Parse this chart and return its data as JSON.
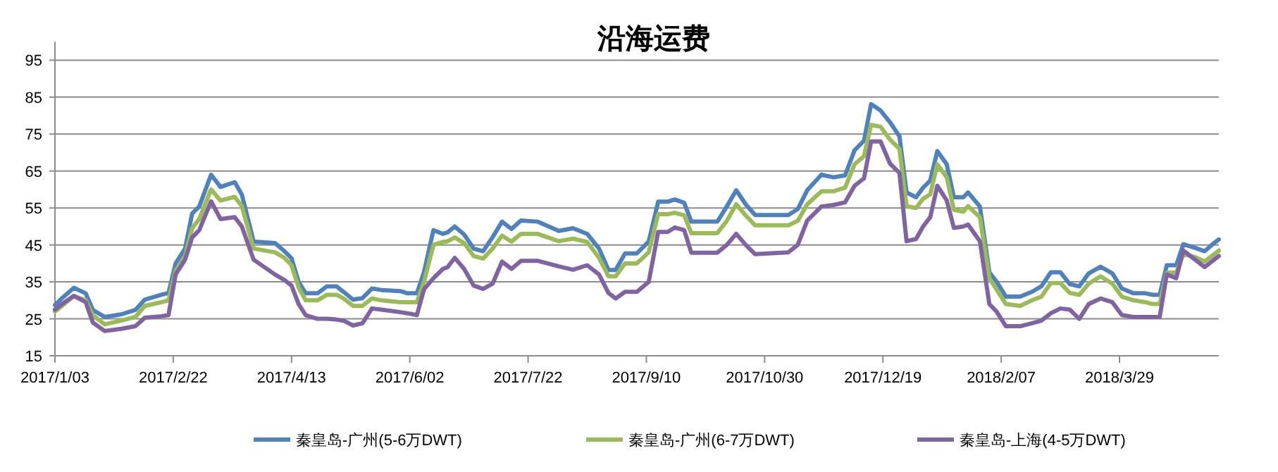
{
  "chart_data": {
    "type": "line",
    "title": "沿海运费",
    "x": [
      "2017-01-03",
      "2017-01-06",
      "2017-01-11",
      "2017-01-16",
      "2017-01-19",
      "2017-01-24",
      "2017-01-31",
      "2017-02-06",
      "2017-02-10",
      "2017-02-17",
      "2017-02-20",
      "2017-02-23",
      "2017-02-27",
      "2017-03-02",
      "2017-03-05",
      "2017-03-10",
      "2017-03-14",
      "2017-03-20",
      "2017-03-23",
      "2017-03-28",
      "2017-04-06",
      "2017-04-10",
      "2017-04-13",
      "2017-04-16",
      "2017-04-19",
      "2017-04-24",
      "2017-04-28",
      "2017-05-02",
      "2017-05-05",
      "2017-05-09",
      "2017-05-13",
      "2017-05-17",
      "2017-05-21",
      "2017-05-29",
      "2017-06-01",
      "2017-06-05",
      "2017-06-08",
      "2017-06-12",
      "2017-06-16",
      "2017-06-18",
      "2017-06-21",
      "2017-06-25",
      "2017-06-29",
      "2017-07-03",
      "2017-07-07",
      "2017-07-11",
      "2017-07-15",
      "2017-07-19",
      "2017-07-26",
      "2017-08-04",
      "2017-08-10",
      "2017-08-16",
      "2017-08-21",
      "2017-08-25",
      "2017-08-28",
      "2017-09-01",
      "2017-09-06",
      "2017-09-11",
      "2017-09-15",
      "2017-09-19",
      "2017-09-22",
      "2017-09-26",
      "2017-09-29",
      "2017-10-10",
      "2017-10-14",
      "2017-10-18",
      "2017-10-22",
      "2017-10-26",
      "2017-11-09",
      "2017-11-13",
      "2017-11-17",
      "2017-11-23",
      "2017-11-28",
      "2017-12-03",
      "2017-12-07",
      "2017-12-11",
      "2017-12-14",
      "2017-12-18",
      "2017-12-22",
      "2017-12-26",
      "2017-12-29",
      "2018-01-02",
      "2018-01-05",
      "2018-01-08",
      "2018-01-11",
      "2018-01-15",
      "2018-01-18",
      "2018-01-22",
      "2018-01-24",
      "2018-01-29",
      "2018-02-02",
      "2018-02-05",
      "2018-02-09",
      "2018-02-15",
      "2018-02-20",
      "2018-02-24",
      "2018-02-28",
      "2018-03-04",
      "2018-03-08",
      "2018-03-12",
      "2018-03-16",
      "2018-03-21",
      "2018-03-26",
      "2018-03-30",
      "2018-04-04",
      "2018-04-09",
      "2018-04-12",
      "2018-04-15",
      "2018-04-18",
      "2018-04-22",
      "2018-04-25",
      "2018-04-30",
      "2018-05-04",
      "2018-05-08",
      "2018-05-10"
    ],
    "series": [
      {
        "name": "秦皇岛-广州(5-6万DWT)",
        "color": "#4f81bd",
        "values": [
          28.7,
          30.6,
          33.4,
          31.9,
          27.4,
          25.5,
          26.2,
          27.4,
          30.2,
          31.5,
          32,
          40,
          44,
          53.5,
          55.4,
          64,
          60.7,
          62,
          58.6,
          45.9,
          45.5,
          43.3,
          41.4,
          35,
          31.9,
          31.9,
          33.8,
          33.8,
          32.3,
          30.2,
          30.6,
          33.2,
          32.8,
          32.5,
          31.9,
          31.9,
          37.6,
          49,
          48,
          48.4,
          50,
          47.8,
          44,
          43.3,
          47.1,
          51.3,
          49.3,
          51.6,
          51.3,
          48.8,
          49.5,
          48,
          44,
          38.2,
          38.2,
          42.7,
          42.7,
          45.9,
          56.7,
          56.7,
          57.3,
          56.4,
          51.3,
          51.3,
          55.4,
          59.8,
          56,
          53.1,
          53.1,
          54.7,
          59.8,
          64,
          63.3,
          63.8,
          70.6,
          73.2,
          83.1,
          81.4,
          78.2,
          74.4,
          59.2,
          57.9,
          60.5,
          62.4,
          70.4,
          66.8,
          57.9,
          57.9,
          59.2,
          55.4,
          37.6,
          35.1,
          31,
          31,
          32.3,
          33.8,
          37.6,
          37.6,
          34.4,
          33.8,
          37.3,
          39.1,
          37.3,
          33.2,
          31.9,
          31.9,
          31.5,
          31.5,
          39.5,
          39.5,
          45.2,
          44.2,
          43.3,
          45.5,
          46.5
        ]
      },
      {
        "name": "秦皇岛-广州(6-7万DWT)",
        "color": "#9bbb59",
        "values": [
          27,
          28.5,
          31.2,
          30,
          26,
          23.5,
          24.5,
          25.5,
          28.5,
          29.5,
          30,
          38,
          42,
          49.5,
          52,
          60,
          57,
          58,
          55.5,
          44,
          43,
          41.5,
          39.5,
          33.5,
          30,
          30,
          31.5,
          31.5,
          30.5,
          28.5,
          28.5,
          30.5,
          30,
          29.5,
          29.5,
          29.5,
          35,
          45,
          45.8,
          46,
          47,
          45.5,
          42,
          41.3,
          44,
          47.5,
          45.9,
          48,
          48,
          46,
          46.7,
          45.8,
          41.5,
          36.5,
          36.5,
          40,
          40,
          43,
          53.3,
          53.3,
          53.7,
          53,
          48.2,
          48.2,
          51.5,
          56,
          53,
          50.3,
          50.3,
          51.5,
          56,
          59.5,
          59.5,
          60.5,
          66.8,
          69,
          77.5,
          77,
          73.5,
          71,
          55.5,
          55,
          57.5,
          58.7,
          66.8,
          63.3,
          54.5,
          54,
          55.5,
          52.5,
          36,
          33,
          29,
          28.5,
          30,
          31,
          34.7,
          34.7,
          32,
          31.5,
          34.5,
          36.5,
          34.5,
          31,
          30,
          29.5,
          29,
          29,
          37.5,
          37.5,
          42.5,
          41.7,
          40.5,
          42.5,
          43.5
        ]
      },
      {
        "name": "秦皇岛-上海(4-5万DWT)",
        "color": "#8064a2",
        "values": [
          27.5,
          29,
          31.2,
          29.5,
          24,
          21.7,
          22.3,
          23,
          25.3,
          25.7,
          26,
          37,
          41,
          47,
          49,
          56.8,
          52,
          52.5,
          50,
          41,
          37,
          35.5,
          34,
          29,
          26,
          25,
          25,
          24.8,
          24.5,
          23.2,
          23.8,
          27.8,
          27.5,
          26.8,
          26.5,
          26,
          33,
          36,
          38.5,
          39,
          41.5,
          38.5,
          34,
          33.1,
          34.5,
          40.5,
          38.5,
          40.7,
          40.7,
          39.2,
          38.3,
          39.5,
          37,
          32,
          30.5,
          32.3,
          32.3,
          35,
          48.5,
          48.5,
          49.7,
          49,
          42.9,
          42.9,
          45,
          48,
          45,
          42.5,
          43,
          45,
          51.6,
          55.4,
          55.8,
          56.5,
          61,
          63,
          73,
          73,
          67,
          64.5,
          46,
          46.6,
          50,
          52.5,
          61,
          57,
          49.6,
          50,
          50.5,
          46,
          29,
          27,
          23,
          23,
          23.8,
          24.5,
          26.5,
          27.8,
          27.5,
          25,
          29,
          30.5,
          29.5,
          26,
          25.5,
          25.5,
          25.5,
          25.5,
          37,
          36,
          43.5,
          41,
          39,
          41,
          42
        ]
      }
    ],
    "xlim": [
      "2017-01-03",
      "2018-05-10"
    ],
    "xticks": [
      {
        "value": "2017-01-03",
        "label": "2017/1/03"
      },
      {
        "value": "2017-02-22",
        "label": "2017/2/22"
      },
      {
        "value": "2017-04-13",
        "label": "2017/4/13"
      },
      {
        "value": "2017-06-02",
        "label": "2017/6/02"
      },
      {
        "value": "2017-07-22",
        "label": "2017/7/22"
      },
      {
        "value": "2017-09-10",
        "label": "2017/9/10"
      },
      {
        "value": "2017-10-30",
        "label": "2017/10/30"
      },
      {
        "value": "2017-12-19",
        "label": "2017/12/19"
      },
      {
        "value": "2018-02-07",
        "label": "2018/2/07"
      },
      {
        "value": "2018-03-29",
        "label": "2018/3/29"
      }
    ],
    "ylim": [
      15,
      100
    ],
    "yticks": [
      15,
      25,
      35,
      45,
      55,
      65,
      75,
      85,
      95
    ],
    "grid": "y",
    "legend": "bottom",
    "marker": "none",
    "line_style": "solid"
  }
}
